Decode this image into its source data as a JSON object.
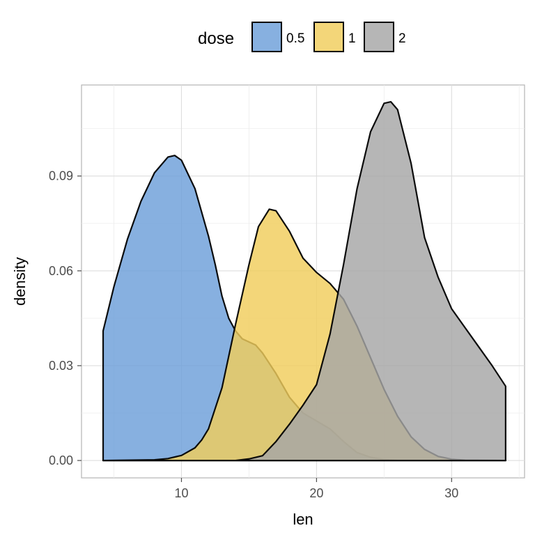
{
  "chart_data": {
    "type": "area",
    "xlabel": "len",
    "ylabel": "density",
    "xlim": [
      2.6,
      35.4
    ],
    "ylim": [
      -0.0055,
      0.1188
    ],
    "x_ticks": [
      10,
      20,
      30
    ],
    "x_tick_labels": [
      "10",
      "20",
      "30"
    ],
    "y_ticks": [
      0.0,
      0.03,
      0.06,
      0.09
    ],
    "y_tick_labels": [
      "0.00",
      "0.03",
      "0.06",
      "0.09"
    ],
    "grid": true,
    "legend": {
      "title": "dose",
      "position": "top"
    },
    "series": [
      {
        "name": "0.5",
        "color": "#6c9fd9",
        "points": [
          [
            4.2,
            0.041
          ],
          [
            5,
            0.055
          ],
          [
            6,
            0.07
          ],
          [
            7,
            0.082
          ],
          [
            8,
            0.091
          ],
          [
            9,
            0.096
          ],
          [
            9.5,
            0.0965
          ],
          [
            10,
            0.095
          ],
          [
            11,
            0.086
          ],
          [
            12,
            0.071
          ],
          [
            12.5,
            0.062
          ],
          [
            13,
            0.052
          ],
          [
            13.5,
            0.045
          ],
          [
            14,
            0.041
          ],
          [
            14.5,
            0.0385
          ],
          [
            15,
            0.0375
          ],
          [
            15.5,
            0.0365
          ],
          [
            16,
            0.034
          ],
          [
            17,
            0.0275
          ],
          [
            18,
            0.02
          ],
          [
            19,
            0.015
          ],
          [
            20,
            0.0125
          ],
          [
            21,
            0.01
          ],
          [
            22,
            0.006
          ],
          [
            23,
            0.0025
          ],
          [
            24,
            0.001
          ],
          [
            25,
            0.0003
          ],
          [
            26,
            0.0
          ],
          [
            34,
            0.0
          ]
        ]
      },
      {
        "name": "1",
        "color": "#f0cd5c",
        "points": [
          [
            4.2,
            0.0
          ],
          [
            8,
            0.0002
          ],
          [
            9,
            0.0006
          ],
          [
            10,
            0.0016
          ],
          [
            11,
            0.004
          ],
          [
            11.5,
            0.0065
          ],
          [
            12,
            0.01
          ],
          [
            13,
            0.023
          ],
          [
            14,
            0.043
          ],
          [
            15,
            0.062
          ],
          [
            15.7,
            0.074
          ],
          [
            16.5,
            0.0795
          ],
          [
            17,
            0.079
          ],
          [
            18,
            0.0725
          ],
          [
            19,
            0.064
          ],
          [
            20,
            0.0595
          ],
          [
            21,
            0.056
          ],
          [
            22,
            0.051
          ],
          [
            23,
            0.0425
          ],
          [
            24,
            0.0325
          ],
          [
            25,
            0.0225
          ],
          [
            26,
            0.014
          ],
          [
            27,
            0.0075
          ],
          [
            28,
            0.0035
          ],
          [
            29,
            0.0013
          ],
          [
            30,
            0.0004
          ],
          [
            31,
            0.0001
          ],
          [
            34,
            0.0
          ]
        ]
      },
      {
        "name": "2",
        "color": "#a6a6a6",
        "points": [
          [
            4.2,
            0.0
          ],
          [
            14,
            0.0
          ],
          [
            15,
            0.0005
          ],
          [
            16,
            0.0015
          ],
          [
            17,
            0.006
          ],
          [
            18,
            0.0115
          ],
          [
            19,
            0.0175
          ],
          [
            20,
            0.024
          ],
          [
            21,
            0.04
          ],
          [
            22,
            0.062
          ],
          [
            23,
            0.086
          ],
          [
            24,
            0.104
          ],
          [
            25,
            0.113
          ],
          [
            25.5,
            0.1135
          ],
          [
            26,
            0.111
          ],
          [
            27,
            0.094
          ],
          [
            28,
            0.0705
          ],
          [
            29,
            0.058
          ],
          [
            30,
            0.048
          ],
          [
            31,
            0.042
          ],
          [
            32,
            0.036
          ],
          [
            33,
            0.03
          ],
          [
            34,
            0.0235
          ],
          [
            34,
            0.0
          ]
        ]
      }
    ]
  }
}
